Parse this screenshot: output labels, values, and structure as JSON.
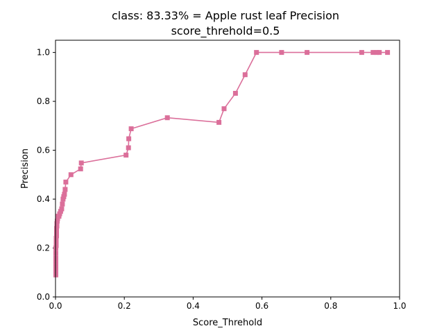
{
  "chart_data": {
    "type": "line",
    "title": "class: 83.33% = Apple rust leaf Precision",
    "subtitle": "score_threhold=0.5",
    "xlabel": "Score_Threhold",
    "ylabel": "Precision",
    "xlim": [
      0.0,
      1.0
    ],
    "ylim": [
      0.0,
      1.05
    ],
    "xticks": [
      "0.0",
      "0.2",
      "0.4",
      "0.6",
      "0.8",
      "1.0"
    ],
    "yticks": [
      "0.0",
      "0.2",
      "0.4",
      "0.6",
      "0.8",
      "1.0"
    ],
    "grid": false,
    "legend": "none",
    "color": "#db6f9a",
    "marker": "square",
    "series": [
      {
        "x": [
          0.001,
          0.001,
          0.001,
          0.001,
          0.001,
          0.001,
          0.001,
          0.001,
          0.001,
          0.001,
          0.002,
          0.002,
          0.002,
          0.002,
          0.003,
          0.003,
          0.003,
          0.003,
          0.004,
          0.004,
          0.005,
          0.006,
          0.008,
          0.01,
          0.012,
          0.015,
          0.018,
          0.02,
          0.022,
          0.024,
          0.026,
          0.028,
          0.03,
          0.045,
          0.073,
          0.075,
          0.205,
          0.212,
          0.213,
          0.22,
          0.325,
          0.475,
          0.49,
          0.523,
          0.551,
          0.584,
          0.657,
          0.731,
          0.89,
          0.923,
          0.934,
          0.941,
          0.965
        ],
        "y": [
          0.09,
          0.1,
          0.11,
          0.12,
          0.13,
          0.14,
          0.15,
          0.16,
          0.18,
          0.2,
          0.21,
          0.22,
          0.23,
          0.24,
          0.25,
          0.26,
          0.27,
          0.28,
          0.29,
          0.3,
          0.31,
          0.32,
          0.33,
          0.33,
          0.34,
          0.35,
          0.36,
          0.38,
          0.4,
          0.41,
          0.42,
          0.44,
          0.47,
          0.5,
          0.524,
          0.548,
          0.58,
          0.61,
          0.647,
          0.688,
          0.733,
          0.714,
          0.77,
          0.833,
          0.909,
          1.0,
          1.0,
          1.0,
          1.0,
          1.0,
          1.0,
          1.0,
          1.0
        ]
      }
    ]
  }
}
